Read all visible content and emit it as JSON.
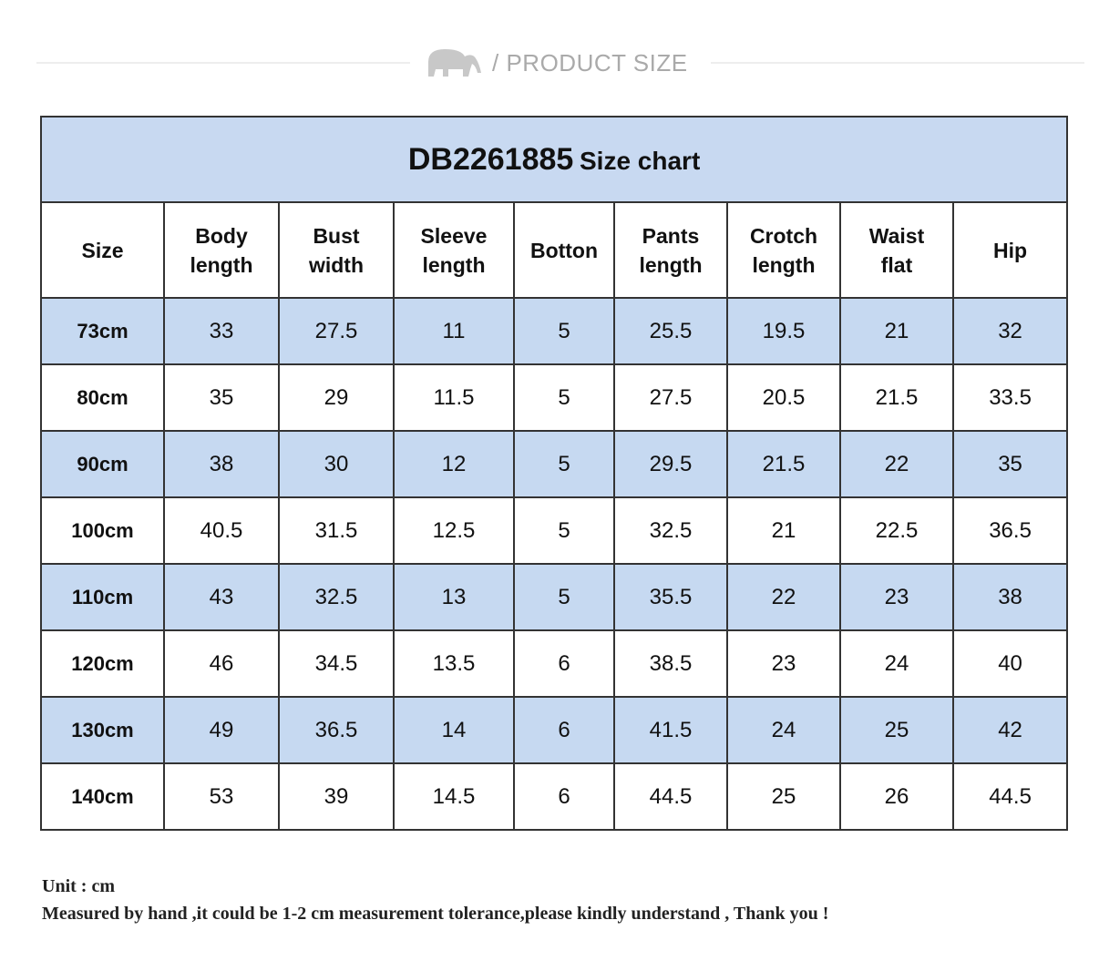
{
  "header": {
    "title": "/ PRODUCT SIZE"
  },
  "table": {
    "title_code": "DB2261885",
    "title_text": "Size chart",
    "columns": [
      [
        "Size"
      ],
      [
        "Body",
        "length"
      ],
      [
        "Bust",
        "width"
      ],
      [
        "Sleeve",
        "length"
      ],
      [
        "Botton"
      ],
      [
        "Pants",
        "length"
      ],
      [
        "Crotch",
        "length"
      ],
      [
        "Waist",
        "flat"
      ],
      [
        "Hip"
      ]
    ],
    "rows": [
      [
        "73cm",
        33,
        27.5,
        11,
        5,
        25.5,
        19.5,
        21,
        32
      ],
      [
        "80cm",
        35,
        29,
        11.5,
        5,
        27.5,
        20.5,
        21.5,
        33.5
      ],
      [
        "90cm",
        38,
        30,
        12,
        5,
        29.5,
        21.5,
        22,
        35
      ],
      [
        "100cm",
        40.5,
        31.5,
        12.5,
        5,
        32.5,
        21,
        22.5,
        36.5
      ],
      [
        "110cm",
        43,
        32.5,
        13,
        5,
        35.5,
        22,
        23,
        38
      ],
      [
        "120cm",
        46,
        34.5,
        13.5,
        6,
        38.5,
        23,
        24,
        40
      ],
      [
        "130cm",
        49,
        36.5,
        14,
        6,
        41.5,
        24,
        25,
        42
      ],
      [
        "140cm",
        53,
        39,
        14.5,
        6,
        44.5,
        25,
        26,
        44.5
      ]
    ]
  },
  "notes": [
    "Unit : cm",
    "Measured by hand ,it could be 1-2 cm measurement tolerance,please kindly understand , Thank you !"
  ]
}
